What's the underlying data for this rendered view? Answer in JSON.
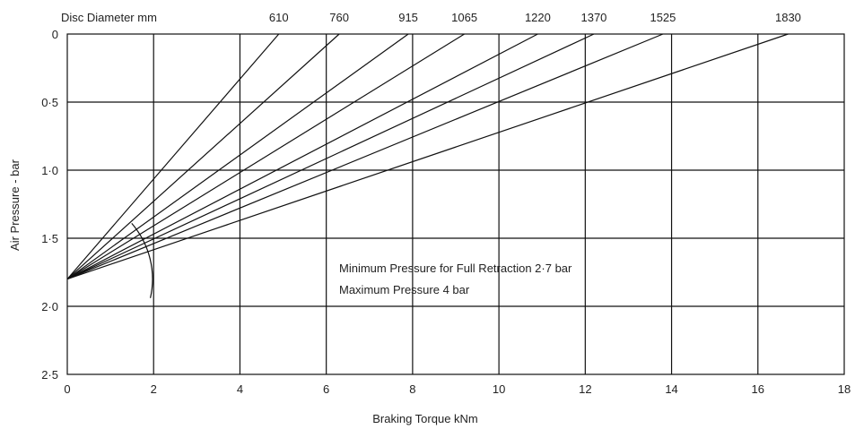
{
  "chart_data": {
    "type": "line",
    "title": "",
    "xlabel": "Braking Torque kNm",
    "ylabel": "Air Pressure - bar",
    "top_axis_label": "Disc Diameter mm",
    "xlim": [
      0,
      18
    ],
    "ylim": [
      0,
      2.5
    ],
    "y_inverted": true,
    "grid": true,
    "x_ticks": [
      0,
      2,
      4,
      6,
      8,
      10,
      12,
      14,
      16,
      18
    ],
    "x_tick_labels": [
      "0",
      "2",
      "4",
      "6",
      "8",
      "10",
      "12",
      "14",
      "16",
      "18"
    ],
    "y_ticks": [
      0,
      0.5,
      1.0,
      1.5,
      2.0,
      2.5
    ],
    "y_tick_labels": [
      "0",
      "0·5",
      "1·0",
      "1·5",
      "2·0",
      "2·5"
    ],
    "series": [
      {
        "name": "610",
        "x": [
          0,
          4.9
        ],
        "y": [
          1.8,
          0
        ]
      },
      {
        "name": "760",
        "x": [
          0,
          6.3
        ],
        "y": [
          1.8,
          0
        ]
      },
      {
        "name": "915",
        "x": [
          0,
          7.9
        ],
        "y": [
          1.8,
          0
        ]
      },
      {
        "name": "1065",
        "x": [
          0,
          9.2
        ],
        "y": [
          1.8,
          0
        ]
      },
      {
        "name": "1220",
        "x": [
          0,
          10.9
        ],
        "y": [
          1.8,
          0
        ]
      },
      {
        "name": "1370",
        "x": [
          0,
          12.2
        ],
        "y": [
          1.8,
          0
        ]
      },
      {
        "name": "1525",
        "x": [
          0,
          13.8
        ],
        "y": [
          1.8,
          0
        ]
      },
      {
        "name": "1830",
        "x": [
          0,
          16.7
        ],
        "y": [
          1.8,
          0
        ]
      }
    ],
    "annotations": [
      "Minimum Pressure for Full Retraction 2·7 bar",
      "Maximum Pressure 4 bar"
    ]
  }
}
